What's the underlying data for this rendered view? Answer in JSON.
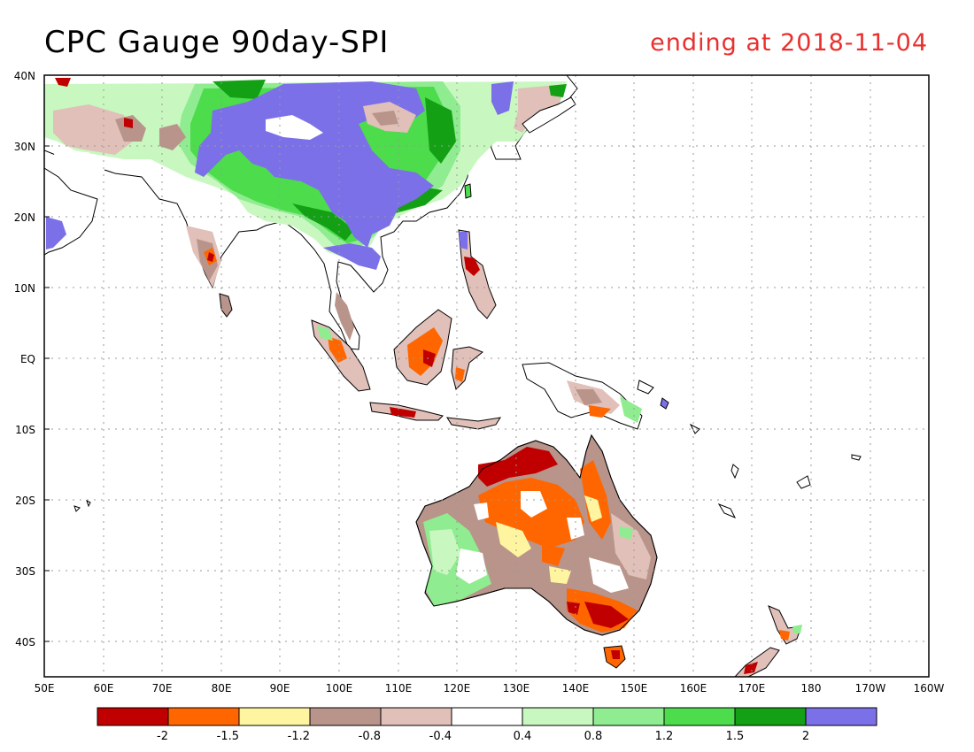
{
  "header": {
    "title": "CPC Gauge 90day-SPI",
    "subtitle": "ending at 2018-11-04"
  },
  "map": {
    "lon_range": [
      50,
      200
    ],
    "lat_range": [
      -45,
      40
    ],
    "grid": "dotted",
    "lat_labels": [
      "40N",
      "30N",
      "20N",
      "10N",
      "EQ",
      "10S",
      "20S",
      "30S",
      "40S"
    ],
    "lon_labels": [
      "50E",
      "60E",
      "70E",
      "80E",
      "90E",
      "100E",
      "110E",
      "120E",
      "130E",
      "140E",
      "150E",
      "160E",
      "170E",
      "180",
      "170W",
      "160W"
    ]
  },
  "legend": {
    "colors": [
      "#c00000",
      "#ff6600",
      "#fff5a0",
      "#b8948a",
      "#e0c0b8",
      "#ffffff",
      "#c8f8c0",
      "#90ec90",
      "#4cdc4c",
      "#14a014",
      "#7b70e8"
    ],
    "labels": [
      "-2",
      "-1.5",
      "-1.2",
      "-0.8",
      "-0.4",
      "0.4",
      "0.8",
      "1.2",
      "1.5",
      "2"
    ]
  },
  "colors": {
    "title": "#000000",
    "subtitle": "#e8302e"
  }
}
